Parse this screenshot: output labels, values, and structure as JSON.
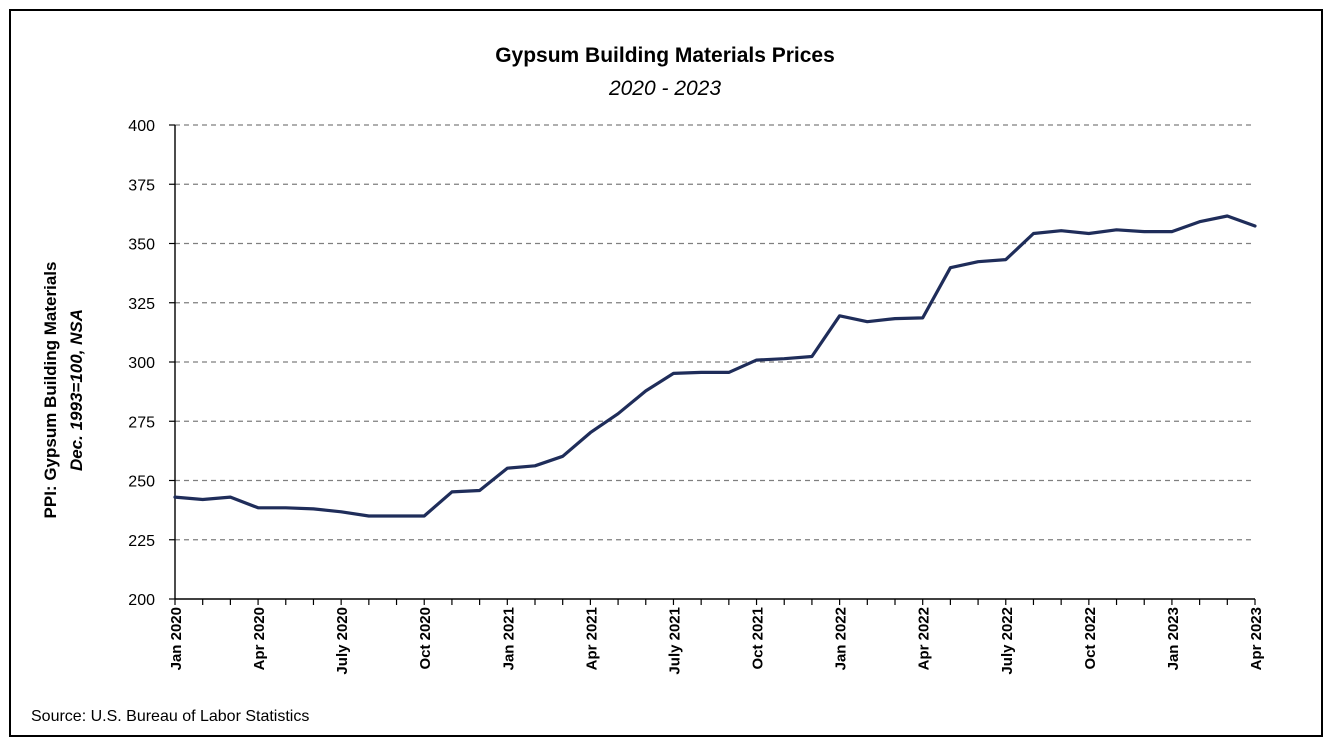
{
  "chart_data": {
    "type": "line",
    "title": "Gypsum Building Materials Prices",
    "subtitle": "2020 - 2023",
    "ylabel": "PPI: Gypsum Building Materials",
    "ylabel_note": "Dec. 1993=100, NSA",
    "xlabel": "",
    "source": "Source: U.S. Bureau of Labor Statistics",
    "ylim": [
      200,
      400
    ],
    "yticks": [
      200,
      225,
      250,
      275,
      300,
      325,
      350,
      375,
      400
    ],
    "grid": "horizontal dashed",
    "x_tick_labels": [
      "Jan 2020",
      "Apr 2020",
      "July 2020",
      "Oct 2020",
      "Jan 2021",
      "Apr 2021",
      "July 2021",
      "Oct 2021",
      "Jan 2022",
      "Apr 2022",
      "July 2022",
      "Oct 2022",
      "Jan 2023",
      "Apr 2023"
    ],
    "x": [
      "2020-01",
      "2020-02",
      "2020-03",
      "2020-04",
      "2020-05",
      "2020-06",
      "2020-07",
      "2020-08",
      "2020-09",
      "2020-10",
      "2020-11",
      "2020-12",
      "2021-01",
      "2021-02",
      "2021-03",
      "2021-04",
      "2021-05",
      "2021-06",
      "2021-07",
      "2021-08",
      "2021-09",
      "2021-10",
      "2021-11",
      "2021-12",
      "2022-01",
      "2022-02",
      "2022-03",
      "2022-04",
      "2022-05",
      "2022-06",
      "2022-07",
      "2022-08",
      "2022-09",
      "2022-10",
      "2022-11",
      "2022-12",
      "2023-01",
      "2023-02",
      "2023-03",
      "2023-04"
    ],
    "series": [
      {
        "color": "#1f2d5a",
        "values": [
          243,
          242,
          243,
          238.5,
          238.5,
          238,
          236.8,
          235,
          235,
          235,
          245.2,
          245.8,
          255.2,
          256.2,
          260.2,
          270.2,
          278.2,
          287.8,
          295.2,
          295.6,
          295.6,
          300.8,
          301.4,
          302.3,
          319.5,
          317,
          318.3,
          318.6,
          339.8,
          342.3,
          343.2,
          354.2,
          355.4,
          354.2,
          355.8,
          355,
          355,
          359.2,
          361.6,
          357.4
        ]
      }
    ]
  }
}
